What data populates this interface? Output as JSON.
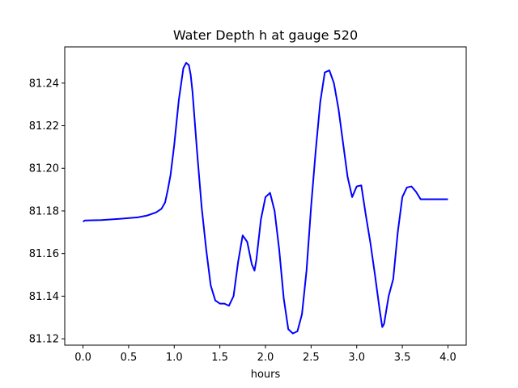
{
  "chart_data": {
    "type": "line",
    "title": "Water Depth h at gauge 520",
    "xlabel": "hours",
    "ylabel": "",
    "xlim": [
      -0.2,
      4.2
    ],
    "ylim": [
      81.117,
      81.257
    ],
    "x_ticks": [
      0.0,
      0.5,
      1.0,
      1.5,
      2.0,
      2.5,
      3.0,
      3.5,
      4.0
    ],
    "x_tick_labels": [
      "0.0",
      "0.5",
      "1.0",
      "1.5",
      "2.0",
      "2.5",
      "3.0",
      "3.5",
      "4.0"
    ],
    "y_ticks": [
      81.12,
      81.14,
      81.16,
      81.18,
      81.2,
      81.22,
      81.24
    ],
    "y_tick_labels": [
      "81.12",
      "81.14",
      "81.16",
      "81.18",
      "81.20",
      "81.22",
      "81.24"
    ],
    "grid": false,
    "legend": "none",
    "series": [
      {
        "color": "#0000ff",
        "x": [
          0.0,
          0.02,
          0.2,
          0.4,
          0.6,
          0.7,
          0.8,
          0.86,
          0.9,
          0.93,
          0.96,
          1.0,
          1.05,
          1.1,
          1.13,
          1.16,
          1.18,
          1.2,
          1.25,
          1.3,
          1.35,
          1.4,
          1.45,
          1.5,
          1.55,
          1.6,
          1.65,
          1.7,
          1.75,
          1.8,
          1.85,
          1.88,
          1.9,
          1.95,
          2.0,
          2.05,
          2.1,
          2.15,
          2.2,
          2.25,
          2.3,
          2.35,
          2.4,
          2.45,
          2.5,
          2.55,
          2.6,
          2.65,
          2.7,
          2.75,
          2.8,
          2.85,
          2.9,
          2.95,
          3.0,
          3.05,
          3.1,
          3.15,
          3.2,
          3.25,
          3.28,
          3.3,
          3.35,
          3.4,
          3.45,
          3.5,
          3.55,
          3.6,
          3.65,
          3.7,
          3.75,
          3.8,
          3.85,
          3.9,
          3.95,
          4.0
        ],
        "y": [
          81.175,
          81.1755,
          81.1757,
          81.1763,
          81.177,
          81.1778,
          81.1793,
          81.181,
          81.184,
          81.19,
          81.197,
          81.211,
          81.232,
          81.247,
          81.2495,
          81.2485,
          81.244,
          81.236,
          81.208,
          81.182,
          81.162,
          81.145,
          81.138,
          81.1365,
          81.1365,
          81.1355,
          81.14,
          81.156,
          81.1685,
          81.1655,
          81.155,
          81.152,
          81.157,
          81.176,
          81.1865,
          81.1885,
          81.18,
          81.162,
          81.139,
          81.1245,
          81.1225,
          81.1235,
          81.1315,
          81.152,
          81.182,
          81.208,
          81.231,
          81.245,
          81.246,
          81.24,
          81.228,
          81.212,
          81.196,
          81.1865,
          81.1915,
          81.192,
          81.178,
          81.165,
          81.15,
          81.134,
          81.1255,
          81.127,
          81.14,
          81.148,
          81.17,
          81.1865,
          81.191,
          81.1915,
          81.189,
          81.1855,
          81.1855,
          81.1855,
          81.1855,
          81.1855,
          81.1855,
          81.1855
        ]
      }
    ]
  }
}
